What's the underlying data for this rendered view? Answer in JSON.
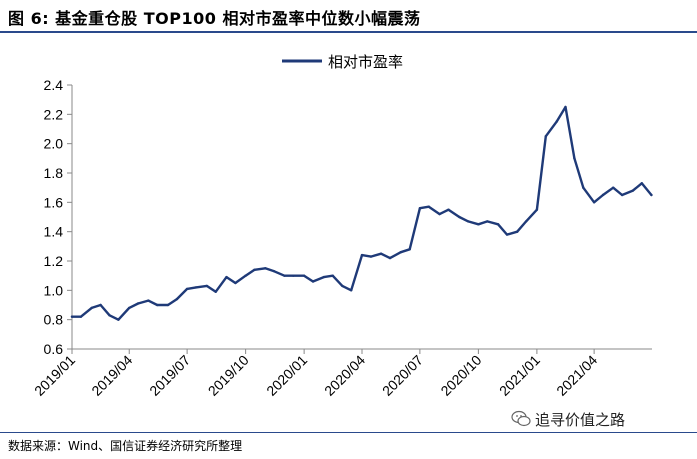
{
  "figure": {
    "title": "图 6: 基金重仓股 TOP100 相对市盈率中位数小幅震荡",
    "source": "数据来源：Wind、国信证券经济研究所整理",
    "watermark": "追寻价值之路",
    "watermark_icon": "wechat-icon"
  },
  "chart_data": {
    "type": "line",
    "title": "",
    "xlabel": "",
    "ylabel": "",
    "ylim": [
      0.6,
      2.4
    ],
    "yticks": [
      "0.6",
      "0.8",
      "1.0",
      "1.2",
      "1.4",
      "1.6",
      "1.8",
      "2.0",
      "2.2",
      "2.4"
    ],
    "xlim": [
      "2019-01",
      "2021-07"
    ],
    "xticks": [
      "2019/01",
      "2019/04",
      "2019/07",
      "2019/10",
      "2020/01",
      "2020/04",
      "2020/07",
      "2020/10",
      "2021/01",
      "2021/04"
    ],
    "grid": false,
    "legend": "top-center",
    "colors": {
      "series": "#1f3a78",
      "axis": "#888888"
    },
    "series": [
      {
        "name": "相对市盈率",
        "x": [
          "2019-01-01",
          "2019-01-15",
          "2019-02-01",
          "2019-02-15",
          "2019-03-01",
          "2019-03-15",
          "2019-04-01",
          "2019-04-15",
          "2019-05-01",
          "2019-05-15",
          "2019-06-01",
          "2019-06-15",
          "2019-07-01",
          "2019-07-15",
          "2019-08-01",
          "2019-08-15",
          "2019-09-01",
          "2019-09-15",
          "2019-10-01",
          "2019-10-15",
          "2019-11-01",
          "2019-11-15",
          "2019-12-01",
          "2019-12-15",
          "2020-01-01",
          "2020-01-15",
          "2020-02-01",
          "2020-02-15",
          "2020-03-01",
          "2020-03-15",
          "2020-04-01",
          "2020-04-15",
          "2020-05-01",
          "2020-05-15",
          "2020-06-01",
          "2020-06-15",
          "2020-07-01",
          "2020-07-15",
          "2020-08-01",
          "2020-08-15",
          "2020-09-01",
          "2020-09-15",
          "2020-10-01",
          "2020-10-15",
          "2020-11-01",
          "2020-11-15",
          "2020-12-01",
          "2020-12-15",
          "2021-01-01",
          "2021-01-15",
          "2021-02-01",
          "2021-02-15",
          "2021-03-01",
          "2021-03-15",
          "2021-04-01",
          "2021-04-15",
          "2021-05-01",
          "2021-05-15",
          "2021-06-01",
          "2021-06-15",
          "2021-06-30"
        ],
        "values": [
          0.82,
          0.82,
          0.88,
          0.9,
          0.83,
          0.8,
          0.88,
          0.91,
          0.93,
          0.9,
          0.9,
          0.94,
          1.01,
          1.02,
          1.03,
          0.99,
          1.09,
          1.05,
          1.1,
          1.14,
          1.15,
          1.13,
          1.1,
          1.1,
          1.1,
          1.06,
          1.09,
          1.1,
          1.03,
          1.0,
          1.24,
          1.23,
          1.25,
          1.22,
          1.26,
          1.28,
          1.56,
          1.57,
          1.52,
          1.55,
          1.5,
          1.47,
          1.45,
          1.47,
          1.45,
          1.38,
          1.4,
          1.47,
          1.55,
          2.05,
          2.15,
          2.25,
          1.9,
          1.7,
          1.6,
          1.65,
          1.7,
          1.65,
          1.68,
          1.73,
          1.65
        ]
      }
    ]
  }
}
